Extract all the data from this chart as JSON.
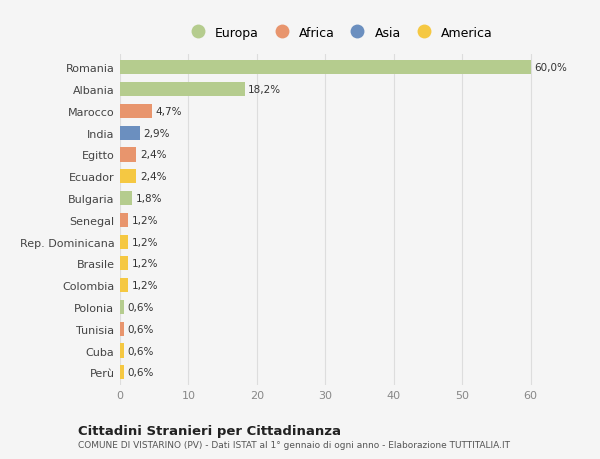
{
  "categories": [
    "Perù",
    "Cuba",
    "Tunisia",
    "Polonia",
    "Colombia",
    "Brasile",
    "Rep. Dominicana",
    "Senegal",
    "Bulgaria",
    "Ecuador",
    "Egitto",
    "India",
    "Marocco",
    "Albania",
    "Romania"
  ],
  "values": [
    0.6,
    0.6,
    0.6,
    0.6,
    1.2,
    1.2,
    1.2,
    1.2,
    1.8,
    2.4,
    2.4,
    2.9,
    4.7,
    18.2,
    60.0
  ],
  "colors": [
    "#f5c842",
    "#f5c842",
    "#e8956d",
    "#b5cc8e",
    "#f5c842",
    "#f5c842",
    "#f5c842",
    "#e8956d",
    "#b5cc8e",
    "#f5c842",
    "#e8956d",
    "#6b8fbf",
    "#e8956d",
    "#b5cc8e",
    "#b5cc8e"
  ],
  "legend_labels": [
    "Europa",
    "Africa",
    "Asia",
    "America"
  ],
  "legend_colors": [
    "#b5cc8e",
    "#e8956d",
    "#6b8fbf",
    "#f5c842"
  ],
  "title1": "Cittadini Stranieri per Cittadinanza",
  "title2": "COMUNE DI VISTARINO (PV) - Dati ISTAT al 1° gennaio di ogni anno - Elaborazione TUTTITALIA.IT",
  "xlim": [
    0,
    64
  ],
  "background_color": "#f5f5f5",
  "grid_color": "#dddddd",
  "labels": [
    "0,6%",
    "0,6%",
    "0,6%",
    "0,6%",
    "1,2%",
    "1,2%",
    "1,2%",
    "1,2%",
    "1,8%",
    "2,4%",
    "2,4%",
    "2,9%",
    "4,7%",
    "18,2%",
    "60,0%"
  ]
}
